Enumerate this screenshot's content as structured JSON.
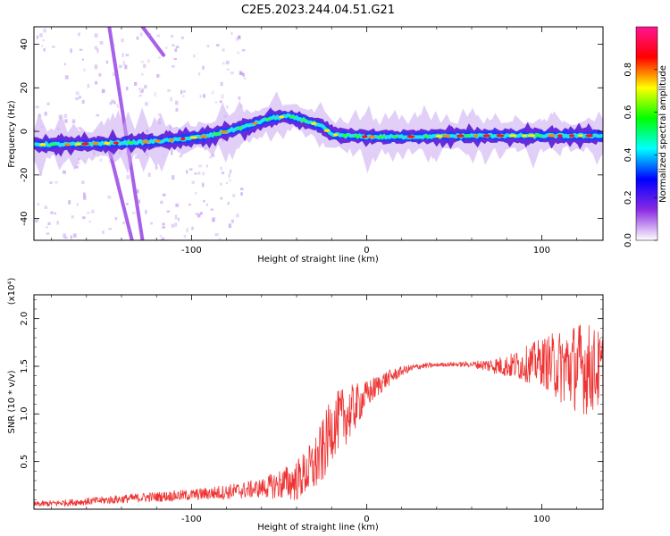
{
  "title": "C2E5.2023.244.04.51.G21",
  "chart_data": [
    {
      "type": "heatmap",
      "panel": "spectrogram",
      "xlabel": "Height of straight line (km)",
      "ylabel": "Frequency (Hz)",
      "xlim": [
        -190,
        135
      ],
      "ylim": [
        -50,
        48
      ],
      "x_ticks": [
        -100,
        0,
        100
      ],
      "x_tick_labels": [
        "-100",
        "0",
        "100"
      ],
      "y_ticks": [
        -40,
        -20,
        0,
        20,
        40
      ],
      "y_tick_labels": [
        "-40",
        "-20",
        "0",
        "20",
        "40"
      ],
      "grid": false,
      "colorbar": {
        "label": "Normalized spectral amplitude",
        "range": [
          0.0,
          1.0
        ],
        "ticks": [
          0.0,
          0.2,
          0.4,
          0.6,
          0.8
        ],
        "tick_labels": [
          "0.0",
          "0.2",
          "0.4",
          "0.6",
          "0.8"
        ],
        "colormap": [
          "#ffffff",
          "#8a2be2",
          "#0000ff",
          "#00ffff",
          "#00ff00",
          "#ffff00",
          "#ff0000",
          "#ff1493"
        ]
      },
      "ridge": {
        "x": [
          -190,
          -170,
          -150,
          -130,
          -110,
          -90,
          -70,
          -55,
          -45,
          -35,
          -25,
          -20,
          -10,
          0,
          20,
          60,
          100,
          135
        ],
        "y": [
          -6,
          -6,
          -5.5,
          -5,
          -4,
          -2,
          2,
          6,
          7,
          5,
          2,
          -1.5,
          -2,
          -2.5,
          -2.5,
          -2,
          -2,
          -2
        ]
      },
      "streaks": [
        {
          "x": [
            -147,
            -128
          ],
          "y": [
            48,
            -50
          ]
        },
        {
          "x": [
            -128,
            -116
          ],
          "y": [
            48,
            35
          ]
        },
        {
          "x": [
            -148,
            -134
          ],
          "y": [
            -5,
            -50
          ]
        }
      ]
    },
    {
      "type": "line",
      "panel": "snr",
      "xlabel": "Height of straight line (km)",
      "ylabel": "SNR (10 * v/v)",
      "y_multiplier": "(x10⁴)",
      "xlim": [
        -190,
        135
      ],
      "ylim": [
        0.0,
        2.25
      ],
      "x_ticks": [
        -100,
        0,
        100
      ],
      "x_tick_labels": [
        "-100",
        "0",
        "100"
      ],
      "y_ticks": [
        0.5,
        1.0,
        1.5,
        2.0
      ],
      "y_tick_labels": [
        "0.5",
        "1.0",
        "1.5",
        "2.0"
      ],
      "grid": false,
      "color": "#ee3333",
      "envelope": {
        "x": [
          -190,
          -160,
          -130,
          -100,
          -80,
          -60,
          -40,
          -30,
          -25,
          -20,
          -15,
          -10,
          -5,
          0,
          10,
          20,
          30,
          45,
          60,
          80,
          90,
          100,
          110,
          120,
          135
        ],
        "y": [
          0.05,
          0.08,
          0.12,
          0.15,
          0.18,
          0.22,
          0.3,
          0.45,
          0.6,
          0.85,
          0.95,
          1.0,
          1.1,
          1.2,
          1.35,
          1.45,
          1.5,
          1.52,
          1.52,
          1.5,
          1.52,
          1.55,
          1.5,
          1.5,
          1.45
        ]
      },
      "amplitude": {
        "x": [
          -190,
          -100,
          -60,
          -35,
          -25,
          -10,
          0,
          20,
          40,
          60,
          80,
          100,
          115,
          125,
          135
        ],
        "y": [
          0.03,
          0.06,
          0.1,
          0.25,
          0.35,
          0.3,
          0.15,
          0.05,
          0.02,
          0.03,
          0.12,
          0.25,
          0.45,
          0.5,
          0.4
        ]
      }
    }
  ]
}
